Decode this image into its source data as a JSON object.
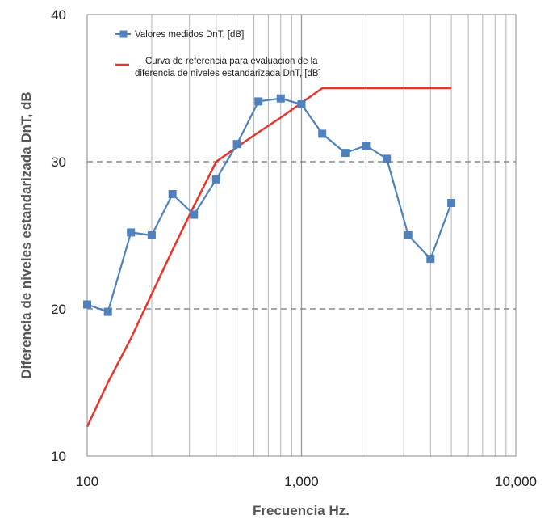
{
  "chart_data": {
    "type": "line",
    "xscale": "log",
    "xlim": [
      100,
      10000
    ],
    "ylim": [
      10,
      40
    ],
    "xlabel": "Frecuencia Hz.",
    "ylabel": "Diferencia de niveles estandarizada DnT, dB",
    "x_ticks": [
      {
        "value": 100,
        "label": "100"
      },
      {
        "value": 1000,
        "label": "1,000"
      },
      {
        "value": 10000,
        "label": "10,000"
      }
    ],
    "y_ticks": [
      {
        "value": 10,
        "label": "10"
      },
      {
        "value": 20,
        "label": "20"
      },
      {
        "value": 30,
        "label": "30"
      },
      {
        "value": 40,
        "label": "40"
      }
    ],
    "grid": {
      "vertical_minor": true,
      "horizontal_dashed": true
    },
    "legend_position": "top-left",
    "series": [
      {
        "name": "Valores medidos DnT, [dB]",
        "color": "#4f81bd",
        "marker": "square",
        "x": [
          100,
          125,
          160,
          200,
          250,
          315,
          400,
          500,
          630,
          800,
          1000,
          1250,
          1600,
          2000,
          2500,
          3150,
          4000,
          5000
        ],
        "y": [
          20.3,
          19.8,
          25.2,
          25.0,
          27.8,
          26.4,
          28.8,
          31.2,
          34.1,
          34.3,
          33.9,
          31.9,
          30.6,
          31.1,
          30.2,
          25.0,
          23.4,
          27.2
        ]
      },
      {
        "name_lines": [
          "Curva de referencia para evaluacion de la",
          "diferencia de niveles estandarizada DnT, [dB]"
        ],
        "color": "#e8342a",
        "marker": "none",
        "x": [
          100,
          125,
          160,
          200,
          250,
          315,
          400,
          500,
          630,
          800,
          1000,
          1250,
          1600,
          2000,
          2500,
          3150,
          4000,
          5000
        ],
        "y": [
          12,
          15,
          18,
          21,
          24,
          27,
          30,
          31,
          32,
          33,
          34,
          35,
          35,
          35,
          35,
          35,
          35,
          35
        ]
      }
    ]
  }
}
